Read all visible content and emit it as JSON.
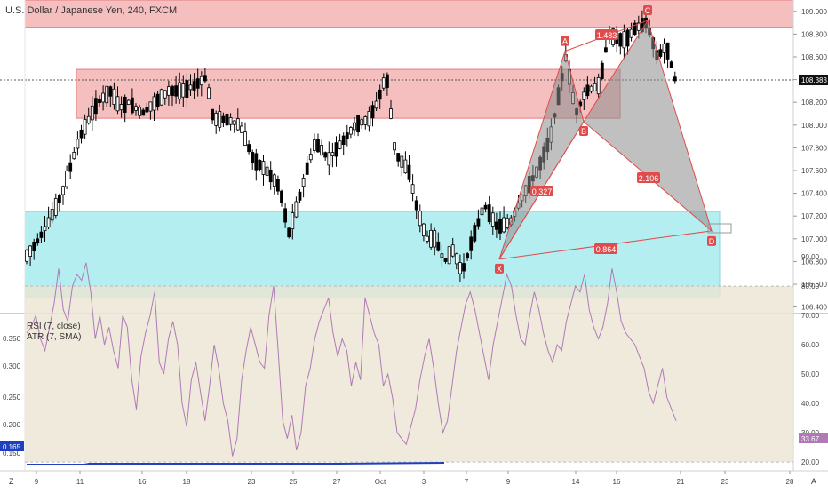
{
  "header": {
    "title": "U.S. Dollar / Japanese Yen, 240, FXCM"
  },
  "indicators": {
    "rsi_label": "RSI (7, close)",
    "atr_label": "ATR (7, SMA)"
  },
  "corner_left": "Z",
  "corner_right": "A",
  "last_price": "108.383",
  "rsi_last": "33.67",
  "atr_last": "0.165",
  "colors": {
    "bull_candle": "#ffffff",
    "bear_candle": "#000000",
    "resistance_zone": "#f4b5b5",
    "support_zone": "#b2eef0",
    "harmonic_pattern": "#e04b4b",
    "rsi_line": "#b07ab6",
    "atr_line": "#1e3fbf",
    "rsi_band": "#ebe5d3"
  },
  "chart_data": {
    "type": "candlestick",
    "symbol": "USDJPY",
    "timeframe": "240",
    "y_ticks": [
      "109.000",
      "108.800",
      "108.600",
      "108.400",
      "108.200",
      "108.000",
      "107.800",
      "107.600",
      "107.400",
      "107.200",
      "107.000",
      "106.800",
      "106.600",
      "106.400"
    ],
    "ylim": [
      106.35,
      109.1
    ],
    "x_ticks": [
      "9",
      "11",
      "16",
      "18",
      "23",
      "25",
      "27",
      "Oct",
      "3",
      "7",
      "9",
      "14",
      "16",
      "21",
      "23",
      "28"
    ],
    "zones": [
      {
        "name": "resistance-top",
        "from": 108.86,
        "to": 109.1
      },
      {
        "name": "resistance-mid",
        "from": 108.06,
        "to": 108.49
      },
      {
        "name": "support",
        "from": 106.48,
        "to": 107.24
      }
    ],
    "pattern": {
      "name": "harmonic XABCD",
      "points": [
        {
          "label": "X",
          "price": 106.82
        },
        {
          "label": "A",
          "price": 108.65
        },
        {
          "label": "B",
          "price": 108.03
        },
        {
          "label": "C",
          "price": 108.92
        },
        {
          "label": "D",
          "price": 107.07
        }
      ],
      "ratios": [
        "0.327",
        "1.483",
        "2.106",
        "0.864"
      ]
    },
    "rsi": {
      "ylim": [
        20,
        90
      ],
      "ticks": [
        "90.00",
        "80.00",
        "70.00",
        "60.00",
        "50.00",
        "40.00",
        "30.00",
        "20.00"
      ],
      "values": [
        64,
        66,
        70,
        62,
        58,
        66,
        74,
        86,
        72,
        68,
        80,
        84,
        82,
        88,
        78,
        62,
        70,
        60,
        66,
        58,
        52,
        70,
        66,
        48,
        38,
        56,
        64,
        70,
        78,
        54,
        50,
        62,
        68,
        60,
        40,
        32,
        48,
        54,
        44,
        34,
        46,
        60,
        52,
        40,
        34,
        22,
        28,
        48,
        58,
        66,
        60,
        54,
        52,
        70,
        80,
        58,
        34,
        28,
        36,
        24,
        30,
        46,
        52,
        62,
        68,
        72,
        76,
        64,
        56,
        62,
        58,
        46,
        54,
        48,
        76,
        70,
        64,
        60,
        46,
        50,
        42,
        30,
        28,
        26,
        32,
        38,
        48,
        56,
        62,
        52,
        40,
        30,
        34,
        46,
        58,
        66,
        74,
        78,
        72,
        64,
        56,
        48,
        60,
        68,
        76,
        84,
        80,
        70,
        62,
        60,
        70,
        78,
        72,
        64,
        58,
        54,
        60,
        58,
        68,
        74,
        80,
        78,
        84,
        72,
        66,
        62,
        66,
        74,
        86,
        78,
        68,
        64,
        62,
        60,
        56,
        52,
        44,
        40,
        46,
        52,
        42,
        38,
        34
      ]
    },
    "atr": {
      "ylim": [
        0.14,
        0.38
      ],
      "ticks": [
        "0.350",
        "0.300",
        "0.250",
        "0.200",
        "0.150"
      ]
    }
  }
}
